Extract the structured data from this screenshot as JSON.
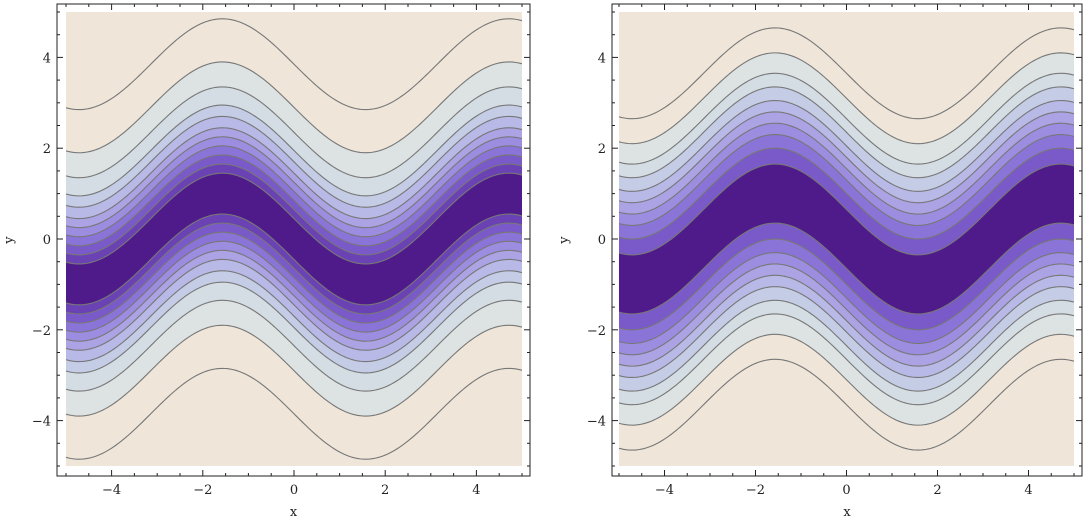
{
  "chart_data": [
    {
      "type": "contour",
      "xlabel": "x",
      "ylabel": "y",
      "xlim": [
        -5,
        5
      ],
      "ylim": [
        -5,
        5
      ],
      "x_ticks": [
        -4,
        -2,
        0,
        2,
        4
      ],
      "y_ticks": [
        -4,
        -2,
        0,
        2,
        4
      ],
      "x_tick_labels": [
        "−4",
        "−2",
        "0",
        "2",
        "4"
      ],
      "y_tick_labels": [
        "−4",
        "−2",
        "0",
        "2",
        "4"
      ],
      "center_curve": "y = -sin(x)",
      "wave_amplitude": 1.0,
      "contour_offsets": [
        0.45,
        0.65,
        0.85,
        1.05,
        1.25,
        1.45,
        1.7,
        1.95,
        2.35,
        2.9,
        3.85
      ],
      "band_colors": [
        "#4f1b8b",
        "#5d2e9e",
        "#6b42b4",
        "#7a5ac8",
        "#8b74d7",
        "#9d8de0",
        "#aba3e3",
        "#b8b9e6",
        "#c5cde6",
        "#d4dde3",
        "#dde2e2",
        "#efe6d9"
      ],
      "grid": false
    },
    {
      "type": "contour",
      "xlabel": "x",
      "ylabel": "y",
      "xlim": [
        -5,
        5
      ],
      "ylim": [
        -5,
        5
      ],
      "x_ticks": [
        -4,
        -2,
        0,
        2,
        4
      ],
      "y_ticks": [
        -4,
        -2,
        0,
        2,
        4
      ],
      "x_tick_labels": [
        "−4",
        "−2",
        "0",
        "2",
        "4"
      ],
      "y_tick_labels": [
        "−4",
        "−2",
        "0",
        "2",
        "4"
      ],
      "center_curve": "y = -sin(x)",
      "wave_amplitude": 1.0,
      "contour_offsets": [
        0.65,
        1.0,
        1.3,
        1.55,
        1.8,
        2.05,
        2.35,
        2.65,
        3.1,
        3.65
      ],
      "band_colors": [
        "#4f1b8b",
        "#6640b0",
        "#7a5ac8",
        "#8b74d7",
        "#9d8de0",
        "#aba3e3",
        "#b8b9e6",
        "#c5cde6",
        "#d4dde3",
        "#dde2e2",
        "#efe6d9"
      ],
      "grid": false
    }
  ]
}
